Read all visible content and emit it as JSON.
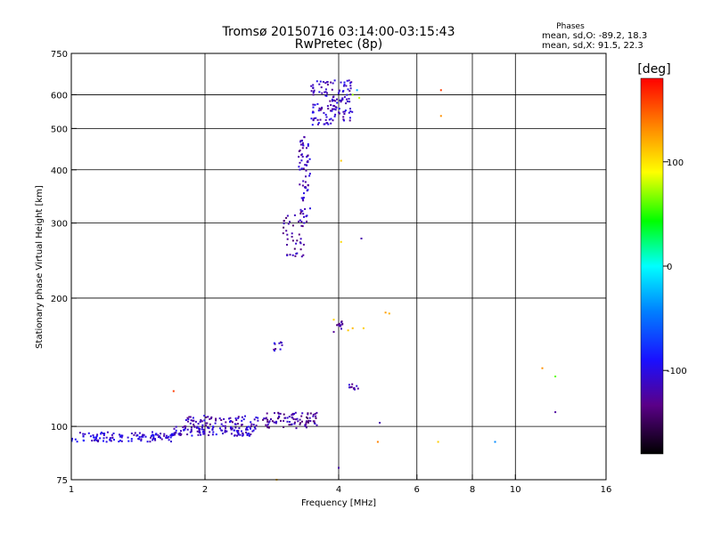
{
  "chart_data": {
    "type": "scatter",
    "title": "Tromsø 20150716 03:14:00-03:15:43",
    "subtitle": "RwPretec (8p)",
    "xlabel": "Frequency [MHz]",
    "ylabel": "Stationary phase Virtual Height [km]",
    "x_scale": "log",
    "y_scale": "log",
    "xlim": [
      1,
      16
    ],
    "ylim": [
      75,
      750
    ],
    "x_ticks": [
      1,
      2,
      4,
      6,
      8,
      10,
      16
    ],
    "x_tick_labels": [
      "1",
      "2",
      "4",
      "6",
      "8",
      "10",
      "16"
    ],
    "y_ticks": [
      75,
      100,
      200,
      300,
      400,
      500,
      600,
      750
    ],
    "y_tick_labels": [
      "75",
      "100",
      "200",
      "300",
      "400",
      "500",
      "600",
      "750"
    ],
    "grid": true,
    "phase_stats": {
      "heading": "Phases",
      "line_o": "mean, sd,O: -89.2, 18.3",
      "line_x": "mean, sd,X:  91.5, 22.3"
    },
    "colorbar": {
      "label": "[deg]",
      "range": [
        -180,
        180
      ],
      "ticks": [
        100,
        0,
        -100
      ],
      "tick_labels": [
        "100",
        "0",
        "-100"
      ]
    },
    "clusters": [
      {
        "name": "",
        "f": [
          1.0,
          1.7
        ],
        "h": [
          92,
          97
        ],
        "phase": -105,
        "n": 120
      },
      {
        "name": "",
        "f": [
          1.7,
          2.6
        ],
        "h": [
          95,
          100
        ],
        "phase": -110,
        "n": 110
      },
      {
        "name": "",
        "f": [
          1.8,
          2.7
        ],
        "h": [
          100,
          106
        ],
        "phase": -115,
        "n": 70
      },
      {
        "name": "",
        "f": [
          2.7,
          3.6
        ],
        "h": [
          99,
          108
        ],
        "phase": -125,
        "n": 90
      },
      {
        "name": "",
        "f": [
          3.0,
          3.35
        ],
        "h": [
          250,
          320
        ],
        "phase": -125,
        "n": 40
      },
      {
        "name": "",
        "f": [
          3.25,
          3.45
        ],
        "h": [
          300,
          480
        ],
        "phase": -115,
        "n": 70
      },
      {
        "name": "",
        "f": [
          3.45,
          3.9
        ],
        "h": [
          510,
          650
        ],
        "phase": -110,
        "n": 80
      },
      {
        "name": "",
        "f": [
          3.9,
          4.3
        ],
        "h": [
          520,
          650
        ],
        "phase": -110,
        "n": 60
      },
      {
        "name": "",
        "f": [
          2.85,
          3.05
        ],
        "h": [
          150,
          158
        ],
        "phase": -115,
        "n": 10
      },
      {
        "name": "",
        "f": [
          3.9,
          4.1
        ],
        "h": [
          165,
          178
        ],
        "phase": -125,
        "n": 12
      },
      {
        "name": "",
        "f": [
          4.2,
          4.45
        ],
        "h": [
          122,
          128
        ],
        "phase": -115,
        "n": 10
      }
    ],
    "points": [
      {
        "f": 1.7,
        "h": 121,
        "phase": 160
      },
      {
        "f": 6.8,
        "h": 615,
        "phase": 160
      },
      {
        "f": 6.8,
        "h": 535,
        "phase": 130
      },
      {
        "f": 4.05,
        "h": 420,
        "phase": 110
      },
      {
        "f": 4.2,
        "h": 168,
        "phase": 110
      },
      {
        "f": 4.3,
        "h": 170,
        "phase": 115
      },
      {
        "f": 4.55,
        "h": 170,
        "phase": 108
      },
      {
        "f": 5.1,
        "h": 185,
        "phase": 125
      },
      {
        "f": 5.2,
        "h": 184,
        "phase": 118
      },
      {
        "f": 4.9,
        "h": 92,
        "phase": 135
      },
      {
        "f": 6.7,
        "h": 92,
        "phase": 108
      },
      {
        "f": 9.0,
        "h": 92,
        "phase": -40
      },
      {
        "f": 11.5,
        "h": 137,
        "phase": 130
      },
      {
        "f": 12.3,
        "h": 131,
        "phase": 60
      },
      {
        "f": 12.3,
        "h": 108,
        "phase": -125
      },
      {
        "f": 4.5,
        "h": 276,
        "phase": -120
      },
      {
        "f": 4.05,
        "h": 271,
        "phase": 105
      },
      {
        "f": 4.0,
        "h": 80,
        "phase": -120
      },
      {
        "f": 4.3,
        "h": 600,
        "phase": 70
      },
      {
        "f": 4.4,
        "h": 615,
        "phase": -30
      },
      {
        "f": 4.45,
        "h": 590,
        "phase": 80
      },
      {
        "f": 2.9,
        "h": 75,
        "phase": 115
      },
      {
        "f": 3.9,
        "h": 178,
        "phase": 105
      },
      {
        "f": 4.95,
        "h": 102,
        "phase": -120
      }
    ]
  }
}
